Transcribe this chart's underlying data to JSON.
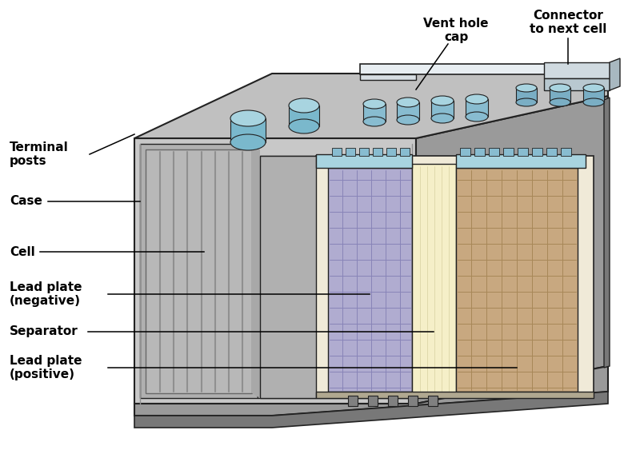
{
  "background_color": "#ffffff",
  "labels": {
    "terminal_posts": "Terminal\nposts",
    "case": "Case",
    "cell": "Cell",
    "lead_plate_neg": "Lead plate\n(negative)",
    "separator": "Separator",
    "lead_plate_pos": "Lead plate\n(positive)",
    "vent_hole_cap": "Vent hole\ncap",
    "connector": "Connector\nto next cell"
  },
  "colors": {
    "gray_outer": "#9a9a9a",
    "gray_mid": "#b0b0b0",
    "gray_light": "#c8c8c8",
    "gray_top": "#c0c0c0",
    "gray_dark": "#787878",
    "gray_side_right": "#888888",
    "case_front_left": "#b8b8b8",
    "case_front_inner": "#d0d0d0",
    "cell_bg": "#f0ead8",
    "separator_bg": "#f5efc8",
    "plate_neg": "#b0acd0",
    "plate_pos": "#c8a880",
    "plate_neg_grid": "#8884b8",
    "plate_pos_grid": "#a88858",
    "blue_stud": "#88bcd0",
    "blue_dark": "#5090a8",
    "blue_light": "#a8d4e0",
    "connector_white": "#e8eef2",
    "outline": "#222222",
    "white": "#ffffff",
    "inner_wall": "#a8a8a8",
    "bottom_gray": "#909090"
  }
}
